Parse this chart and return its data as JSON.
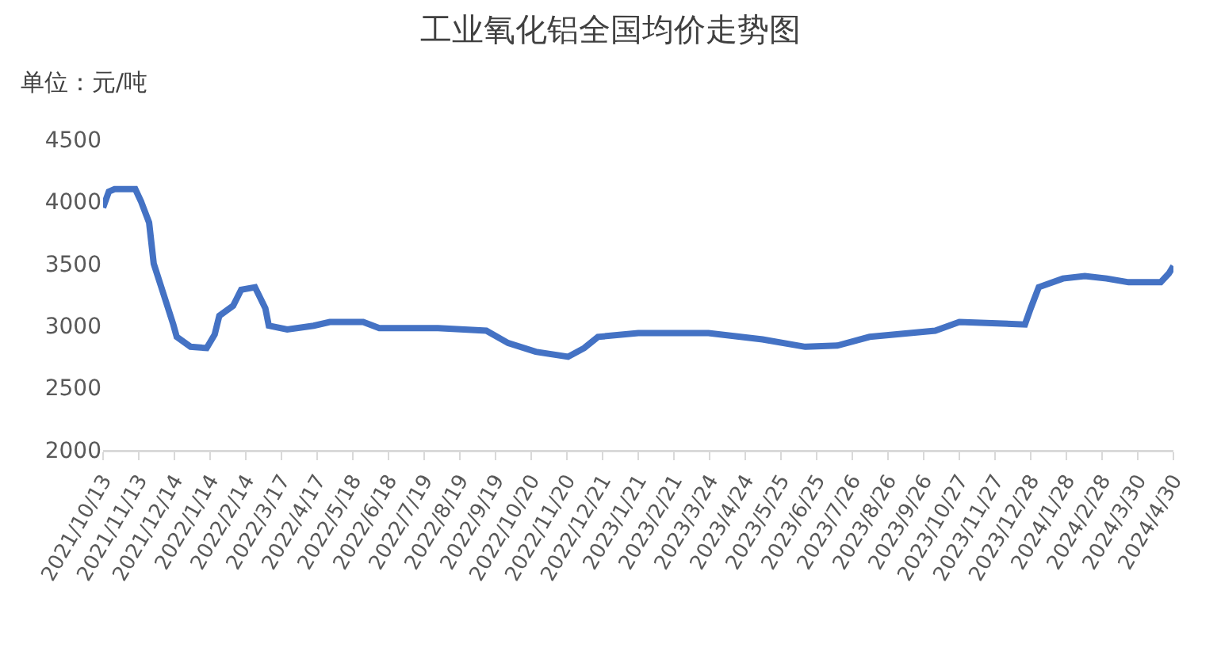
{
  "chart_data": {
    "type": "line",
    "title": "工业氧化铝全国均价走势图",
    "ylabel": "单位：元/吨",
    "x": [
      "2021-10-13",
      "2021-10-18",
      "2021-10-23",
      "2021-11-10",
      "2021-11-15",
      "2021-11-22",
      "2021-11-26",
      "2021-12-04",
      "2021-12-13",
      "2021-12-16",
      "2021-12-28",
      "2022-01-11",
      "2022-01-18",
      "2022-01-22",
      "2022-02-03",
      "2022-02-10",
      "2022-02-22",
      "2022-03-03",
      "2022-03-06",
      "2022-03-22",
      "2022-04-14",
      "2022-04-28",
      "2022-05-27",
      "2022-06-10",
      "2022-07-31",
      "2022-09-11",
      "2022-09-30",
      "2022-10-24",
      "2022-11-21",
      "2022-12-05",
      "2022-12-17",
      "2023-01-21",
      "2023-03-23",
      "2023-05-09",
      "2023-06-15",
      "2023-07-13",
      "2023-08-10",
      "2023-10-06",
      "2023-10-27",
      "2023-12-23",
      "2023-12-28",
      "2024-01-04",
      "2024-01-25",
      "2024-02-13",
      "2024-03-03",
      "2024-03-22",
      "2024-04-19",
      "2024-04-26",
      "2024-04-30"
    ],
    "series": [
      {
        "color": "#4472c4",
        "values": [
          3950,
          4080,
          4100,
          4100,
          4000,
          3830,
          3500,
          3270,
          3010,
          2910,
          2830,
          2820,
          2930,
          3080,
          3160,
          3290,
          3310,
          3140,
          3000,
          2970,
          3000,
          3030,
          3030,
          2980,
          2980,
          2960,
          2860,
          2790,
          2750,
          2820,
          2910,
          2940,
          2940,
          2890,
          2830,
          2840,
          2910,
          2960,
          3030,
          3010,
          3140,
          3310,
          3380,
          3400,
          3380,
          3350,
          3350,
          3420,
          3480
        ]
      }
    ],
    "xlim": [
      "2021-10-13",
      "2024-04-30"
    ],
    "xticks": [
      {
        "value": "2021-10-13",
        "label": "2021/10/13"
      },
      {
        "value": "2021-11-13",
        "label": "2021/11/13"
      },
      {
        "value": "2021-12-14",
        "label": "2021/12/14"
      },
      {
        "value": "2022-01-14",
        "label": "2022/1/14"
      },
      {
        "value": "2022-02-14",
        "label": "2022/2/14"
      },
      {
        "value": "2022-03-17",
        "label": "2022/3/17"
      },
      {
        "value": "2022-04-17",
        "label": "2022/4/17"
      },
      {
        "value": "2022-05-18",
        "label": "2022/5/18"
      },
      {
        "value": "2022-06-18",
        "label": "2022/6/18"
      },
      {
        "value": "2022-07-19",
        "label": "2022/7/19"
      },
      {
        "value": "2022-08-19",
        "label": "2022/8/19"
      },
      {
        "value": "2022-09-19",
        "label": "2022/9/19"
      },
      {
        "value": "2022-10-20",
        "label": "2022/10/20"
      },
      {
        "value": "2022-11-20",
        "label": "2022/11/20"
      },
      {
        "value": "2022-12-21",
        "label": "2022/12/21"
      },
      {
        "value": "2023-01-21",
        "label": "2023/1/21"
      },
      {
        "value": "2023-02-21",
        "label": "2023/2/21"
      },
      {
        "value": "2023-03-24",
        "label": "2023/3/24"
      },
      {
        "value": "2023-04-24",
        "label": "2023/4/24"
      },
      {
        "value": "2023-05-25",
        "label": "2023/5/25"
      },
      {
        "value": "2023-06-25",
        "label": "2023/6/25"
      },
      {
        "value": "2023-07-26",
        "label": "2023/7/26"
      },
      {
        "value": "2023-08-26",
        "label": "2023/8/26"
      },
      {
        "value": "2023-09-26",
        "label": "2023/9/26"
      },
      {
        "value": "2023-10-27",
        "label": "2023/10/27"
      },
      {
        "value": "2023-11-27",
        "label": "2023/11/27"
      },
      {
        "value": "2023-12-28",
        "label": "2023/12/28"
      },
      {
        "value": "2024-01-28",
        "label": "2024/1/28"
      },
      {
        "value": "2024-02-28",
        "label": "2024/2/28"
      },
      {
        "value": "2024-03-30",
        "label": "2024/3/30"
      },
      {
        "value": "2024-04-30",
        "label": "2024/4/30"
      }
    ],
    "ylim": [
      2000,
      4500
    ],
    "yticks": [
      2000,
      2500,
      3000,
      3500,
      4000,
      4500
    ],
    "grid": false,
    "marker": "none",
    "line_style": "solid"
  }
}
